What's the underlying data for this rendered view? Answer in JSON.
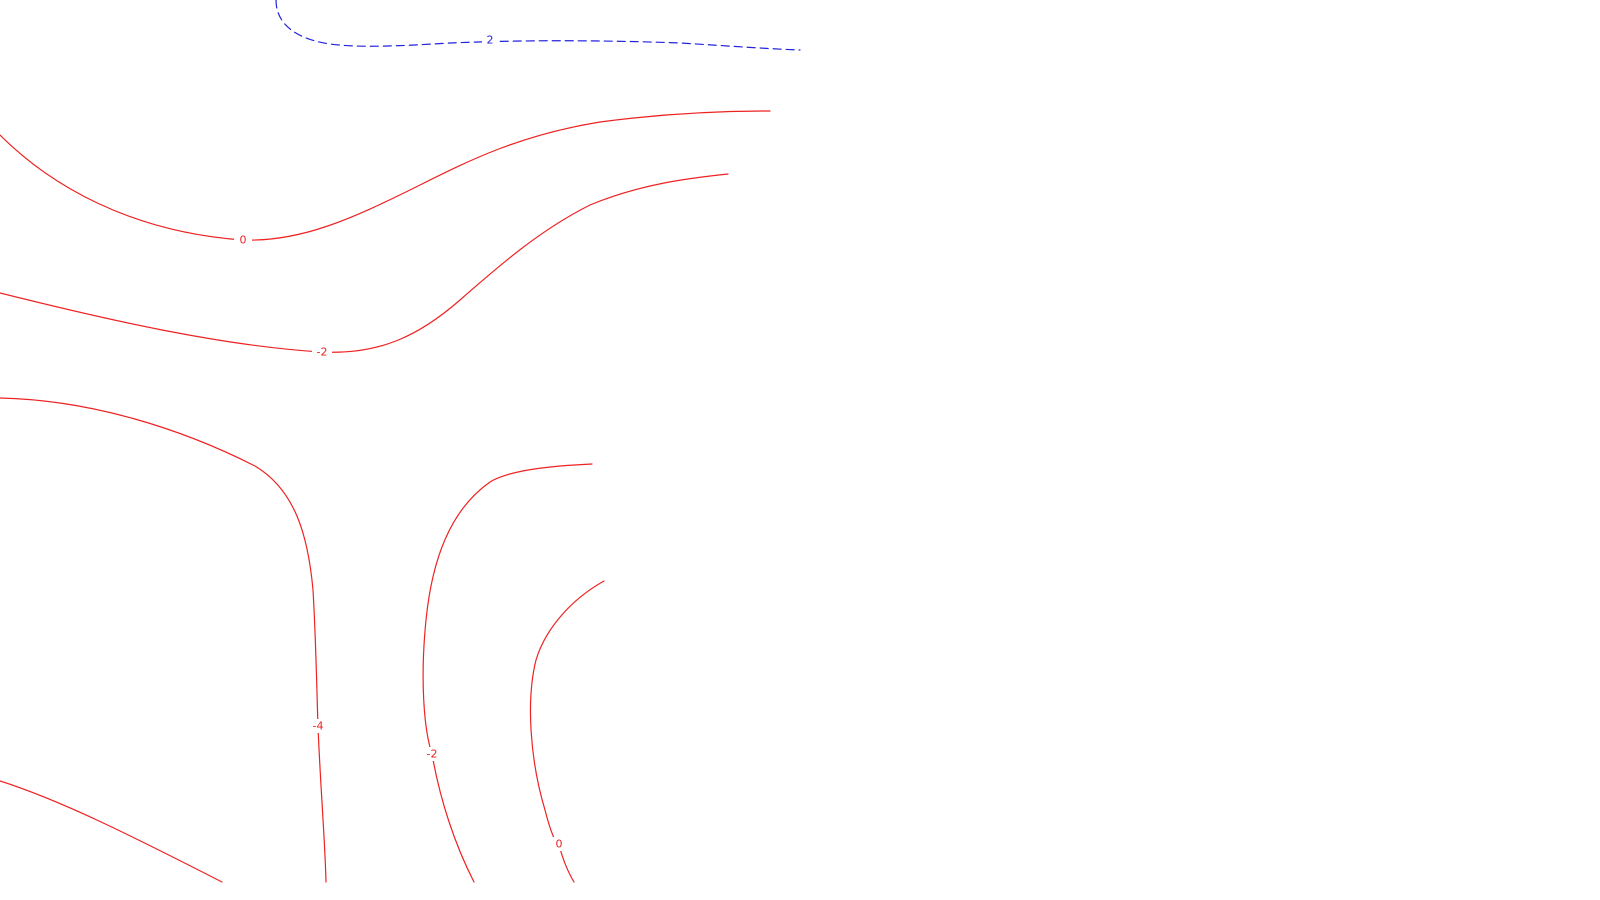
{
  "chart_data": {
    "type": "contour",
    "title": "",
    "xlabel": "",
    "ylabel": "",
    "grid": false,
    "legend": "none",
    "colors": {
      "positive": "#2222dd",
      "negative_or_zero": "#ee2222"
    },
    "contours": [
      {
        "name": "contour-2-top",
        "level": 2,
        "label": "2",
        "style": "dashed",
        "color": "#2222dd"
      },
      {
        "name": "contour-0-upper",
        "level": 0,
        "label": "0",
        "style": "solid",
        "color": "#ee2222"
      },
      {
        "name": "contour-minus2-upper",
        "level": -2,
        "label": "-2",
        "style": "solid",
        "color": "#ee2222"
      },
      {
        "name": "contour-minus4-left",
        "level": -4,
        "label": "-4",
        "style": "solid",
        "color": "#ee2222"
      },
      {
        "name": "contour-minus2-lower",
        "level": -2,
        "label": "-2",
        "style": "solid",
        "color": "#ee2222"
      },
      {
        "name": "contour-0-lower",
        "level": 0,
        "label": "0",
        "style": "solid",
        "color": "#ee2222"
      },
      {
        "name": "contour-unlabeled-corner",
        "level": null,
        "label": "",
        "style": "solid",
        "color": "#ee2222"
      }
    ]
  }
}
